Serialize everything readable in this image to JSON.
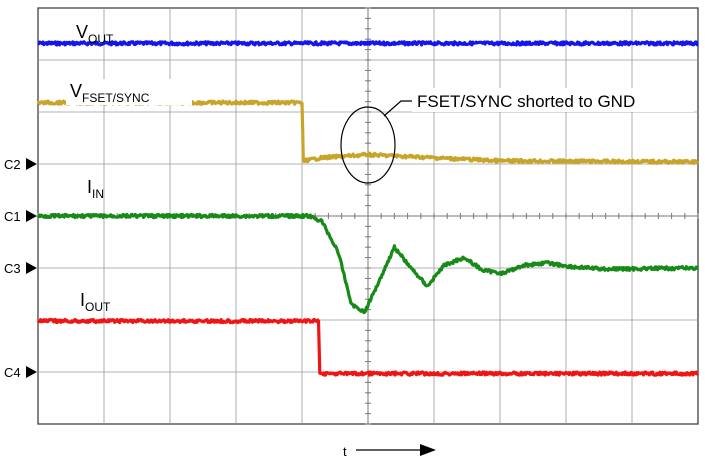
{
  "chart_data": {
    "type": "line",
    "title": "",
    "xlabel": "t",
    "ylabel": "",
    "grid": true,
    "x_range": [
      0,
      10
    ],
    "y_range": [
      0,
      8
    ],
    "channel_markers": [
      {
        "name": "C1",
        "level": 4.0
      },
      {
        "name": "C2",
        "level": 5.0
      },
      {
        "name": "C3",
        "level": 3.0
      },
      {
        "name": "C4",
        "level": 1.0
      }
    ],
    "series": [
      {
        "name": "V",
        "sub": "OUT",
        "color": "#1515ee",
        "points": [
          [
            0,
            7.32
          ],
          [
            10,
            7.32
          ]
        ]
      },
      {
        "name": "V",
        "sub": "FSET/SYNC",
        "color": "#c8a52a",
        "points": [
          [
            0,
            6.18
          ],
          [
            4.0,
            6.18
          ],
          [
            4.02,
            5.06
          ],
          [
            4.3,
            5.12
          ],
          [
            5.0,
            5.18
          ],
          [
            6.0,
            5.12
          ],
          [
            7.0,
            5.06
          ],
          [
            10,
            5.04
          ]
        ]
      },
      {
        "name": "I",
        "sub": "IN",
        "color": "#178a17",
        "points": [
          [
            0,
            4.0
          ],
          [
            4.1,
            4.0
          ],
          [
            4.3,
            3.9
          ],
          [
            4.55,
            3.3
          ],
          [
            4.75,
            2.3
          ],
          [
            4.95,
            2.15
          ],
          [
            5.15,
            2.7
          ],
          [
            5.4,
            3.4
          ],
          [
            5.65,
            3.0
          ],
          [
            5.9,
            2.65
          ],
          [
            6.15,
            3.05
          ],
          [
            6.45,
            3.2
          ],
          [
            6.75,
            2.95
          ],
          [
            7.05,
            2.9
          ],
          [
            7.35,
            3.05
          ],
          [
            7.7,
            3.1
          ],
          [
            8.1,
            3.02
          ],
          [
            8.6,
            2.98
          ],
          [
            10,
            3.0
          ]
        ]
      },
      {
        "name": "I",
        "sub": "OUT",
        "color": "#ee1515",
        "points": [
          [
            0,
            1.98
          ],
          [
            4.25,
            1.98
          ],
          [
            4.27,
            0.97
          ],
          [
            10,
            0.97
          ]
        ]
      }
    ],
    "annotations": [
      {
        "text": "FSET/SYNC shorted to GND"
      }
    ]
  }
}
